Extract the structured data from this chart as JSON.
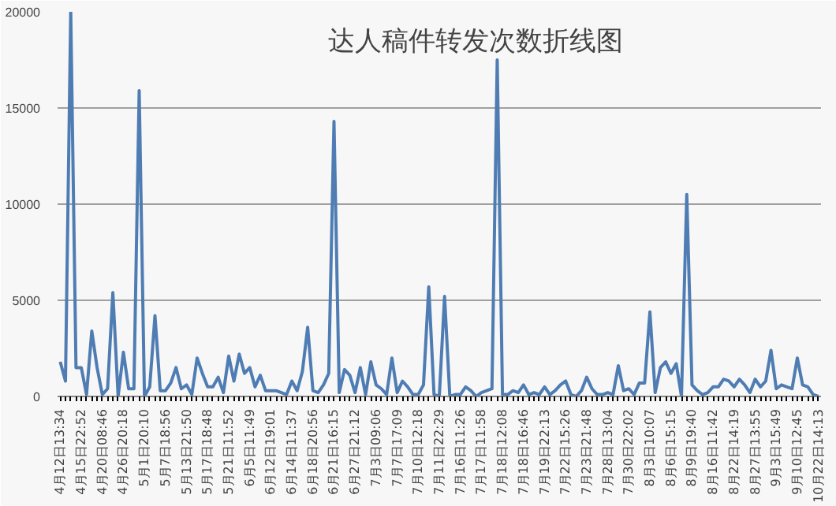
{
  "chart_data": {
    "type": "line",
    "title": "达人稿件转发次数折线图",
    "categories": [
      "4月12日13:34",
      null,
      null,
      null,
      "4月15日22:52",
      null,
      null,
      null,
      "4月20日08:46",
      null,
      null,
      null,
      "4月26日20:18",
      null,
      null,
      null,
      "5月1日20:10",
      null,
      null,
      null,
      "5月7日18:56",
      null,
      null,
      null,
      "5月13日21:50",
      null,
      null,
      null,
      "5月17日18:48",
      null,
      null,
      null,
      "5月21日11:52",
      null,
      null,
      null,
      "6月5日11:49",
      null,
      null,
      null,
      "6月12日19:01",
      null,
      null,
      null,
      "6月14日11:37",
      null,
      null,
      null,
      "6月18日20:56",
      null,
      null,
      null,
      "6月21日16:15",
      null,
      null,
      null,
      "6月27日21:12",
      null,
      null,
      null,
      "7月3日09:06",
      null,
      null,
      null,
      "7月7日17:09",
      null,
      null,
      null,
      "7月10日12:18",
      null,
      null,
      null,
      "7月11日22:29",
      null,
      null,
      null,
      "7月16日11:26",
      null,
      null,
      null,
      "7月17日11:58",
      null,
      null,
      null,
      "7月18日12:08",
      null,
      null,
      null,
      "7月18日16:46",
      null,
      null,
      null,
      "7月19日22:13",
      null,
      null,
      null,
      "7月22日15:26",
      null,
      null,
      null,
      "7月23日21:48",
      null,
      null,
      null,
      "7月28日13:04",
      null,
      null,
      null,
      "7月30日22:02",
      null,
      null,
      null,
      "8月3日10:07",
      null,
      null,
      null,
      "8月6日15:15",
      null,
      null,
      null,
      "8月9日19:40",
      null,
      null,
      null,
      "8月16日11:42",
      null,
      null,
      null,
      "8月22日14:19",
      null,
      null,
      null,
      "8月27日13:55",
      null,
      null,
      null,
      "9月3日15:49",
      null,
      null,
      null,
      "9月10日12:45",
      null,
      null,
      null,
      "10月22日14:13"
    ],
    "series": [
      {
        "color": "#4f7db3",
        "values": [
          1800,
          800,
          20000,
          1500,
          1500,
          100,
          3400,
          1500,
          100,
          400,
          5400,
          0,
          2300,
          400,
          400,
          15900,
          0,
          500,
          4200,
          300,
          300,
          700,
          1500,
          400,
          600,
          100,
          2000,
          1200,
          500,
          500,
          1000,
          200,
          2100,
          800,
          2200,
          1200,
          1500,
          500,
          1100,
          300,
          300,
          300,
          200,
          100,
          800,
          300,
          1300,
          3600,
          300,
          200,
          600,
          1200,
          14300,
          200,
          1400,
          1100,
          200,
          1500,
          100,
          1800,
          600,
          400,
          100,
          2000,
          200,
          800,
          500,
          100,
          100,
          600,
          5700,
          100,
          0,
          5200,
          0,
          100,
          100,
          500,
          300,
          0,
          200,
          300,
          400,
          17500,
          100,
          100,
          300,
          200,
          600,
          100,
          200,
          100,
          500,
          100,
          300,
          600,
          800,
          100,
          0,
          300,
          1000,
          400,
          100,
          100,
          200,
          100,
          1600,
          300,
          400,
          100,
          700,
          700,
          4400,
          200,
          1500,
          1800,
          1200,
          1700,
          0,
          10500,
          600,
          300,
          100,
          200,
          500,
          500,
          900,
          800,
          500,
          900,
          600,
          200,
          900,
          500,
          800,
          2400,
          400,
          600,
          500,
          400,
          2000,
          600,
          500,
          100,
          0
        ]
      }
    ],
    "ylim": [
      0,
      20000
    ],
    "yticks": [
      0,
      5000,
      10000,
      15000,
      20000
    ],
    "grid": "y"
  }
}
